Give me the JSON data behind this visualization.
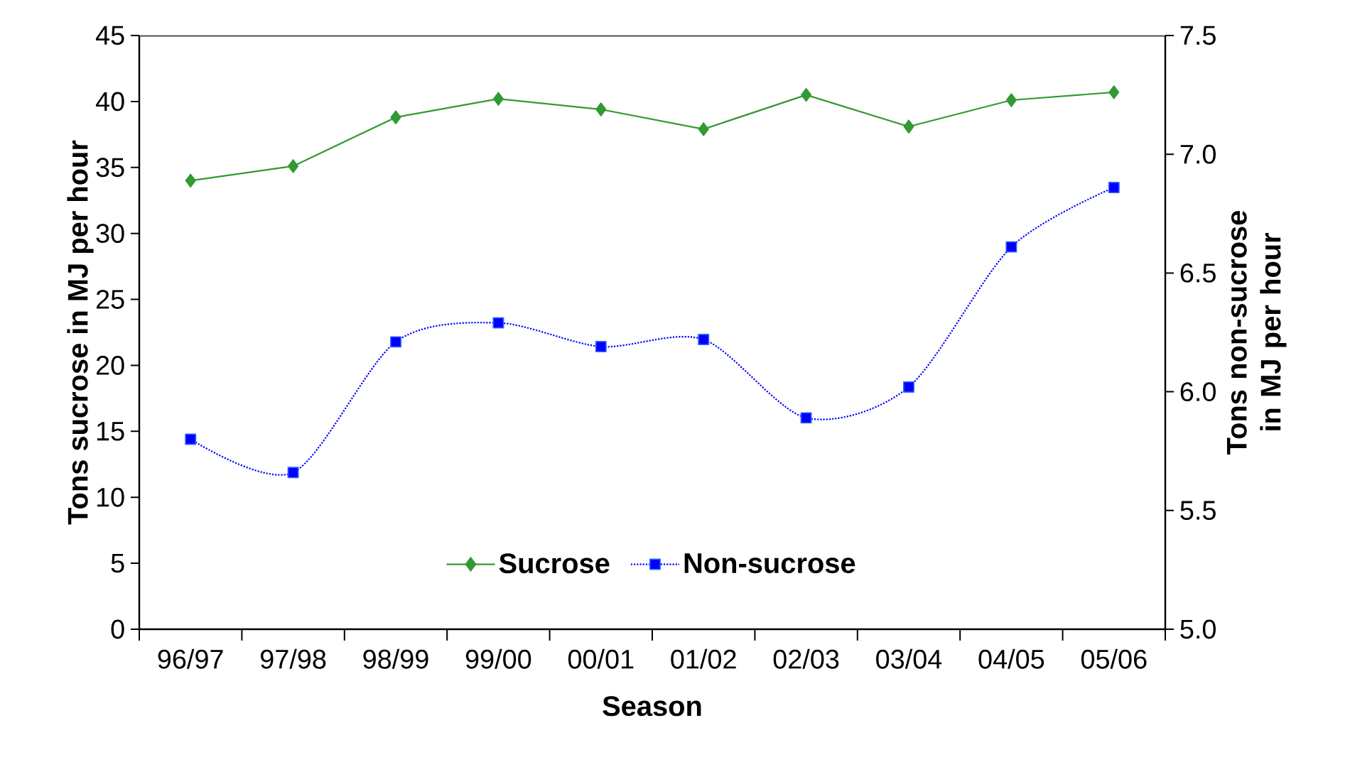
{
  "chart_data": {
    "type": "line",
    "xlabel": "Season",
    "ylabel": "Tons sucrose in MJ per hour",
    "y2label": "Tons non-sucrose in MJ per hour",
    "categories": [
      "96/97",
      "97/98",
      "98/99",
      "99/00",
      "00/01",
      "01/02",
      "02/03",
      "03/04",
      "04/05",
      "05/06"
    ],
    "series": [
      {
        "name": "Sucrose",
        "color": "#339933",
        "marker": "diamond",
        "line_style": "solid",
        "values": [
          34.0,
          35.1,
          38.8,
          40.2,
          39.4,
          37.9,
          40.5,
          38.1,
          40.1,
          40.7
        ]
      },
      {
        "name": "Non-sucrose",
        "color": "#0000ff",
        "marker": "square",
        "line_style": "dotted",
        "axis": "y2",
        "values": [
          5.8,
          5.66,
          6.21,
          6.29,
          6.19,
          6.22,
          5.89,
          6.02,
          6.61,
          6.86
        ]
      }
    ],
    "ylim": [
      0,
      45
    ],
    "yticks": [
      0,
      5,
      10,
      15,
      20,
      25,
      30,
      35,
      40,
      45
    ],
    "y2lim": [
      5.0,
      7.5
    ],
    "y2ticks": [
      {
        "value": 5.0,
        "label": "5.0"
      },
      {
        "value": 5.5,
        "label": "5.5"
      },
      {
        "value": 6.0,
        "label": "6.0"
      },
      {
        "value": 6.5,
        "label": "6.5"
      },
      {
        "value": 7.0,
        "label": "7.0"
      },
      {
        "value": 7.5,
        "label": "7.5"
      }
    ],
    "grid": false,
    "legend": "bottom"
  }
}
